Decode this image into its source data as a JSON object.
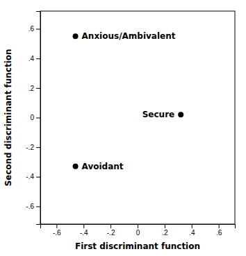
{
  "chart_data": {
    "type": "scatter",
    "x": [
      -0.46,
      0.32,
      -0.46
    ],
    "values": [
      0.55,
      0.02,
      -0.33
    ],
    "labels": [
      "Anxious/Ambivalent",
      "Secure",
      "Avoidant"
    ],
    "color": "#000000",
    "xlabel": "First discriminant function",
    "ylabel": "Second discriminant function",
    "xlim": [
      -0.72,
      0.72
    ],
    "ylim": [
      -0.72,
      0.72
    ],
    "xticks": [
      {
        "value": -0.6,
        "label": "-.6"
      },
      {
        "value": -0.4,
        "label": "-.4"
      },
      {
        "value": -0.2,
        "label": "-.2"
      },
      0,
      {
        "value": 0.2,
        "label": ".2"
      },
      {
        "value": 0.4,
        "label": ".4"
      },
      {
        "value": 0.6,
        "label": ".6"
      }
    ],
    "yticks": [
      {
        "value": -0.6,
        "label": "-.6"
      },
      {
        "value": -0.4,
        "label": "-.4"
      },
      {
        "value": -0.2,
        "label": "-.2"
      },
      0,
      {
        "value": 0.2,
        "label": ".2"
      },
      {
        "value": 0.4,
        "label": ".4"
      },
      {
        "value": 0.6,
        "label": ".6"
      }
    ]
  }
}
